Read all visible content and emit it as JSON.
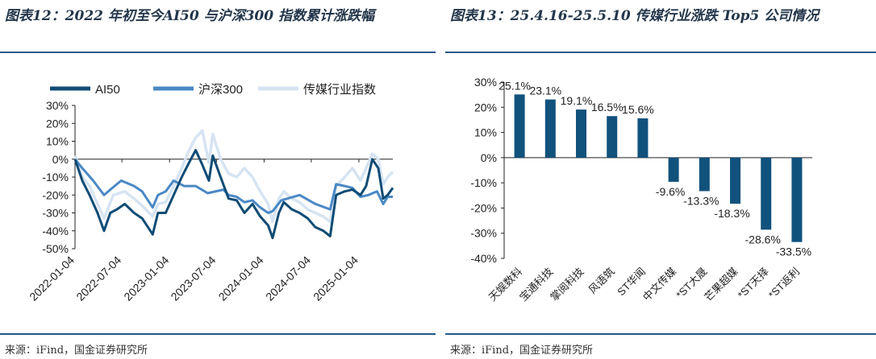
{
  "left": {
    "title": "图表12：2022 年初至今AI50 与沪深300 指数累计涨跌幅",
    "source": "来源：iFind，国金证券研究所",
    "chart_data": {
      "type": "line",
      "legend_placement": "top",
      "x_ticks": [
        "2022-01-04",
        "2022-07-04",
        "2023-01-04",
        "2023-07-04",
        "2024-01-04",
        "2024-07-04",
        "2025-01-04"
      ],
      "x_range": [
        "2022-01-04",
        "2025-05-15"
      ],
      "ylim": [
        -0.5,
        0.3
      ],
      "y_ticks": [
        "30%",
        "20%",
        "10%",
        "0%",
        "-10%",
        "-20%",
        "-30%",
        "-40%",
        "-50%"
      ],
      "grid": false,
      "series": [
        {
          "name": "AI50",
          "color": "#0f4c75",
          "style": "solid",
          "points": [
            [
              "2022-01-04",
              0.0
            ],
            [
              "2022-02-01",
              -0.12
            ],
            [
              "2022-03-01",
              -0.2
            ],
            [
              "2022-04-01",
              -0.3
            ],
            [
              "2022-04-26",
              -0.4
            ],
            [
              "2022-05-20",
              -0.3
            ],
            [
              "2022-06-15",
              -0.28
            ],
            [
              "2022-07-15",
              -0.25
            ],
            [
              "2022-08-20",
              -0.3
            ],
            [
              "2022-09-20",
              -0.33
            ],
            [
              "2022-10-31",
              -0.42
            ],
            [
              "2022-11-20",
              -0.3
            ],
            [
              "2022-12-20",
              -0.3
            ],
            [
              "2023-01-20",
              -0.2
            ],
            [
              "2023-02-20",
              -0.1
            ],
            [
              "2023-03-20",
              -0.02
            ],
            [
              "2023-04-15",
              0.05
            ],
            [
              "2023-05-10",
              -0.03
            ],
            [
              "2023-06-05",
              -0.12
            ],
            [
              "2023-06-20",
              0.02
            ],
            [
              "2023-07-20",
              -0.1
            ],
            [
              "2023-08-20",
              -0.22
            ],
            [
              "2023-09-20",
              -0.23
            ],
            [
              "2023-10-20",
              -0.3
            ],
            [
              "2023-11-20",
              -0.25
            ],
            [
              "2023-12-20",
              -0.32
            ],
            [
              "2024-01-20",
              -0.37
            ],
            [
              "2024-02-06",
              -0.44
            ],
            [
              "2024-03-01",
              -0.3
            ],
            [
              "2024-03-20",
              -0.24
            ],
            [
              "2024-04-20",
              -0.28
            ],
            [
              "2024-05-20",
              -0.3
            ],
            [
              "2024-06-20",
              -0.33
            ],
            [
              "2024-07-20",
              -0.38
            ],
            [
              "2024-08-20",
              -0.4
            ],
            [
              "2024-09-15",
              -0.43
            ],
            [
              "2024-10-08",
              -0.2
            ],
            [
              "2024-11-10",
              -0.18
            ],
            [
              "2024-12-10",
              -0.17
            ],
            [
              "2025-01-10",
              -0.2
            ],
            [
              "2025-02-01",
              -0.15
            ],
            [
              "2025-02-25",
              0.0
            ],
            [
              "2025-03-20",
              -0.05
            ],
            [
              "2025-04-08",
              -0.22
            ],
            [
              "2025-04-25",
              -0.2
            ],
            [
              "2025-05-15",
              -0.16
            ]
          ]
        },
        {
          "name": "沪深300",
          "color": "#4a88c4",
          "style": "solid",
          "points": [
            [
              "2022-01-04",
              0.0
            ],
            [
              "2022-02-01",
              -0.05
            ],
            [
              "2022-03-15",
              -0.12
            ],
            [
              "2022-04-26",
              -0.2
            ],
            [
              "2022-05-20",
              -0.17
            ],
            [
              "2022-07-01",
              -0.12
            ],
            [
              "2022-08-20",
              -0.15
            ],
            [
              "2022-09-20",
              -0.18
            ],
            [
              "2022-10-31",
              -0.27
            ],
            [
              "2022-11-20",
              -0.2
            ],
            [
              "2022-12-20",
              -0.18
            ],
            [
              "2023-01-20",
              -0.12
            ],
            [
              "2023-03-01",
              -0.15
            ],
            [
              "2023-04-15",
              -0.15
            ],
            [
              "2023-05-31",
              -0.19
            ],
            [
              "2023-07-31",
              -0.17
            ],
            [
              "2023-08-20",
              -0.2
            ],
            [
              "2023-09-20",
              -0.21
            ],
            [
              "2023-10-20",
              -0.24
            ],
            [
              "2023-11-20",
              -0.23
            ],
            [
              "2023-12-20",
              -0.27
            ],
            [
              "2024-01-20",
              -0.3
            ],
            [
              "2024-02-06",
              -0.29
            ],
            [
              "2024-03-10",
              -0.23
            ],
            [
              "2024-05-20",
              -0.2
            ],
            [
              "2024-07-20",
              -0.25
            ],
            [
              "2024-09-15",
              -0.28
            ],
            [
              "2024-10-08",
              -0.14
            ],
            [
              "2024-11-10",
              -0.15
            ],
            [
              "2024-12-10",
              -0.16
            ],
            [
              "2025-01-10",
              -0.21
            ],
            [
              "2025-02-10",
              -0.2
            ],
            [
              "2025-03-15",
              -0.18
            ],
            [
              "2025-04-08",
              -0.25
            ],
            [
              "2025-04-25",
              -0.21
            ],
            [
              "2025-05-15",
              -0.21
            ]
          ]
        },
        {
          "name": "传媒行业指数",
          "color": "#d6e4f2",
          "style": "solid",
          "points": [
            [
              "2022-01-04",
              0.02
            ],
            [
              "2022-02-01",
              -0.1
            ],
            [
              "2022-03-01",
              -0.15
            ],
            [
              "2022-04-01",
              -0.25
            ],
            [
              "2022-04-26",
              -0.33
            ],
            [
              "2022-06-01",
              -0.2
            ],
            [
              "2022-07-15",
              -0.18
            ],
            [
              "2022-08-20",
              -0.22
            ],
            [
              "2022-09-20",
              -0.26
            ],
            [
              "2022-10-31",
              -0.32
            ],
            [
              "2022-11-20",
              -0.25
            ],
            [
              "2022-12-20",
              -0.24
            ],
            [
              "2023-01-20",
              -0.15
            ],
            [
              "2023-02-20",
              -0.05
            ],
            [
              "2023-03-20",
              0.05
            ],
            [
              "2023-04-15",
              0.12
            ],
            [
              "2023-05-10",
              0.16
            ],
            [
              "2023-06-05",
              -0.02
            ],
            [
              "2023-06-20",
              0.14
            ],
            [
              "2023-07-20",
              0.0
            ],
            [
              "2023-08-20",
              -0.08
            ],
            [
              "2023-09-20",
              -0.1
            ],
            [
              "2023-10-20",
              -0.05
            ],
            [
              "2023-11-20",
              -0.1
            ],
            [
              "2023-12-20",
              -0.18
            ],
            [
              "2024-01-20",
              -0.25
            ],
            [
              "2024-02-06",
              -0.35
            ],
            [
              "2024-03-01",
              -0.22
            ],
            [
              "2024-03-20",
              -0.18
            ],
            [
              "2024-04-20",
              -0.22
            ],
            [
              "2024-05-20",
              -0.24
            ],
            [
              "2024-06-20",
              -0.28
            ],
            [
              "2024-07-20",
              -0.3
            ],
            [
              "2024-08-20",
              -0.32
            ],
            [
              "2024-09-15",
              -0.35
            ],
            [
              "2024-10-08",
              -0.15
            ],
            [
              "2024-11-10",
              -0.1
            ],
            [
              "2024-12-10",
              -0.05
            ],
            [
              "2025-01-10",
              -0.12
            ],
            [
              "2025-02-01",
              -0.05
            ],
            [
              "2025-02-25",
              0.03
            ],
            [
              "2025-03-20",
              0.0
            ],
            [
              "2025-04-08",
              -0.14
            ],
            [
              "2025-04-25",
              -0.1
            ],
            [
              "2025-05-15",
              -0.07
            ]
          ]
        }
      ]
    }
  },
  "right": {
    "title": "图表13：25.4.16-25.5.10 传媒行业涨跌 Top5 公司情况",
    "source": "来源：iFind，国金证券研究所",
    "chart_data": {
      "type": "bar",
      "color": "#11527d",
      "categories": [
        "天娱数科",
        "宝通科技",
        "掌阅科技",
        "风语筑",
        "ST华闻",
        "中文传媒",
        "*ST大晟",
        "芒果超媒",
        "*ST天择",
        "*ST返利"
      ],
      "values": [
        0.251,
        0.231,
        0.191,
        0.165,
        0.156,
        -0.096,
        -0.133,
        -0.183,
        -0.286,
        -0.335
      ],
      "data_labels": [
        "25.1%",
        "23.1%",
        "19.1%",
        "16.5%",
        "15.6%",
        "-9.6%",
        "-13.3%",
        "-18.3%",
        "-28.6%",
        "-33.5%"
      ],
      "ylim": [
        -0.4,
        0.3
      ],
      "y_ticks": [
        "30%",
        "20%",
        "10%",
        "0%",
        "-10%",
        "-20%",
        "-30%",
        "-40%"
      ],
      "grid": false
    }
  }
}
